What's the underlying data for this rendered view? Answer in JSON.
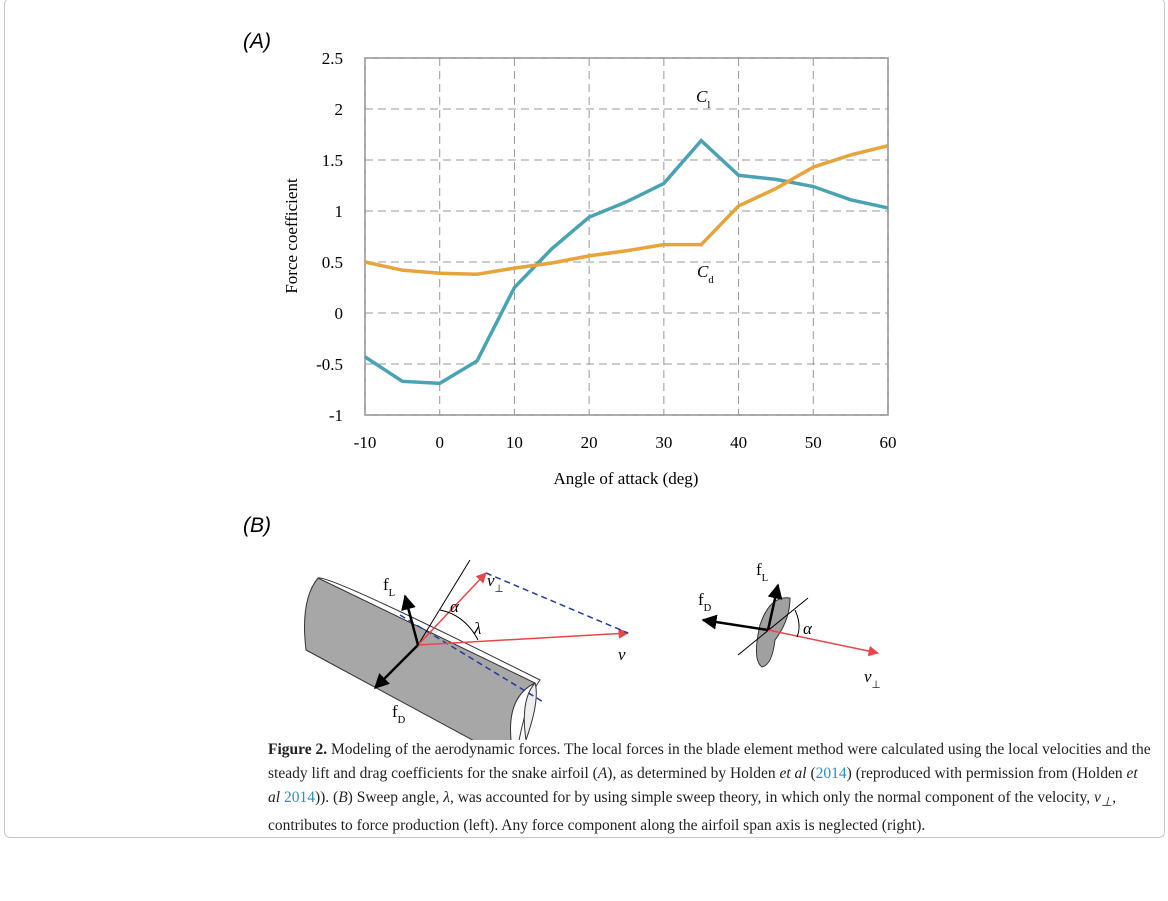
{
  "chart_data": {
    "type": "line",
    "panel_label": "(A)",
    "y_label": "Force coefficient",
    "x_label": "Angle of attack (deg)",
    "x": [
      -10,
      -5,
      0,
      5,
      10,
      15,
      20,
      25,
      30,
      35,
      40,
      45,
      50,
      55,
      60
    ],
    "series": [
      {
        "name": "Cl",
        "color": "#4aa3b5",
        "values": [
          -0.43,
          -0.67,
          -0.69,
          -0.47,
          0.25,
          0.63,
          0.94,
          1.09,
          1.27,
          1.69,
          1.35,
          1.31,
          1.24,
          1.11,
          1.03
        ]
      },
      {
        "name": "Cd",
        "color": "#e8a33a",
        "values": [
          0.5,
          0.42,
          0.39,
          0.38,
          0.44,
          0.49,
          0.56,
          0.61,
          0.67,
          0.67,
          1.05,
          1.22,
          1.43,
          1.55,
          1.64
        ]
      }
    ],
    "xlim": [
      -10,
      60
    ],
    "xticks": [
      -10,
      0,
      10,
      20,
      30,
      40,
      50,
      60
    ],
    "ylim": [
      -1,
      2.5
    ],
    "yticks": [
      -1,
      -0.5,
      0,
      0.5,
      1,
      1.5,
      2,
      2.5
    ],
    "grid": true
  },
  "panel_b": {
    "label": "(B)",
    "left": {
      "v_perp": "v⊥",
      "f_l": "fL",
      "alpha": "α",
      "lambda": "λ",
      "v": "v",
      "f_d": "fD"
    },
    "right": {
      "f_l": "fL",
      "f_d": "fD",
      "alpha": "α",
      "v_perp": "v⊥"
    }
  },
  "caption": {
    "parts": [
      "Figure 2.",
      "  Modeling of the aerodynamic forces. The local forces in the blade element method were calculated using the local velocities and the steady lift and drag coefficients for the snake airfoil (",
      "A",
      "), as determined by Holden ",
      "et al",
      " (",
      "2014",
      ") (reproduced with permission from (Holden ",
      "et al",
      " 2014",
      ")). (",
      "B",
      ") Sweep angle, ",
      "λ",
      ", was accounted for by using simple sweep theory, in which only the normal component of the velocity, ",
      "v⊥",
      ", contributes to force production (left). Any force component along the airfoil span axis is neglected (right)."
    ]
  }
}
